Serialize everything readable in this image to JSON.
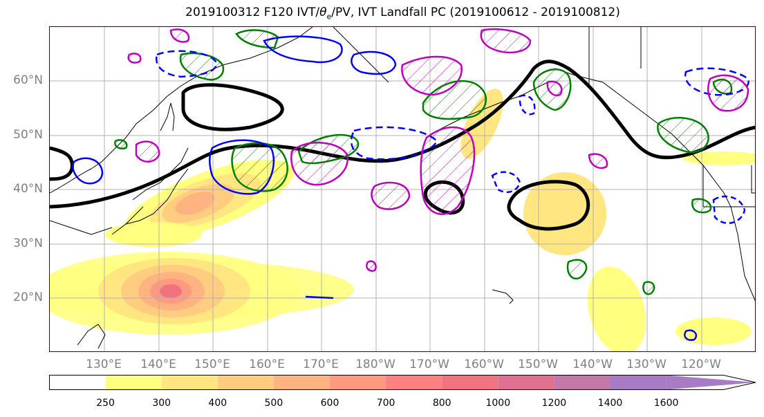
{
  "title": {
    "prefix": "2019100312 F120 IVT/",
    "symbol": "θ",
    "subscript": "e",
    "suffix": "/PV, IVT Landfall PC (2019100612 - 2019100812)"
  },
  "lat_labels": [
    "60°N",
    "50°N",
    "40°N",
    "30°N",
    "20°N"
  ],
  "lon_labels": [
    "130°E",
    "140°E",
    "150°E",
    "160°E",
    "170°E",
    "180°W",
    "170°W",
    "160°W",
    "150°W",
    "140°W",
    "130°W",
    "120°W"
  ],
  "colorbar": {
    "ticks": [
      "250",
      "300",
      "400",
      "500",
      "600",
      "700",
      "800",
      "1000",
      "1200",
      "1400",
      "1600"
    ],
    "colors": [
      "#ffff80",
      "#ffe680",
      "#ffcc80",
      "#ffb380",
      "#ff9980",
      "#ff8080",
      "#f27380",
      "#e07090",
      "#c478a8",
      "#a87cc4"
    ],
    "under_color": "#ffffff",
    "over_color": "#a87cc4"
  },
  "contour_colors": {
    "theta_e": "#000000",
    "positive_pc": "#008000",
    "negative_pc": "#0000ff",
    "pv": "#c000c0"
  }
}
